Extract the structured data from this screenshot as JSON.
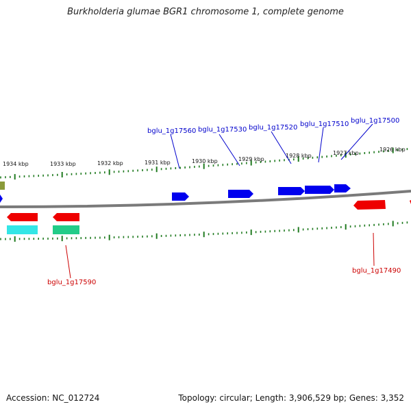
{
  "title": "Burkholderia glumae BGR1 chromosome 1, complete genome",
  "footer": {
    "accession": "Accession: NC_012724",
    "summary": "Topology: circular; Length: 3,906,529 bp; Genes: 3,352"
  },
  "colors": {
    "backbone": "#7a7a7a",
    "tick": "#1f7a1f",
    "forward_gene": "#0000ee",
    "reverse_gene": "#ee0000",
    "label_forward": "#0000cc",
    "label_reverse": "#cc0000",
    "feature_cyan": "#33e6e6",
    "feature_green": "#22cc88",
    "feature_olive": "#8a9a3a"
  },
  "scale_labels": [
    "1934 kbp",
    "1933 kbp",
    "1932 kbp",
    "1931 kbp",
    "1930 kbp",
    "1929 kbp",
    "1928 kbp",
    "1927 kbp",
    "1926 kbp"
  ],
  "gene_labels": {
    "forward": [
      "bglu_1g17560",
      "bglu_1g17530",
      "bglu_1g17520",
      "bglu_1g17510",
      "bglu_1g17500"
    ],
    "reverse": [
      "bglu_1g17590",
      "bglu_1g17490"
    ]
  }
}
